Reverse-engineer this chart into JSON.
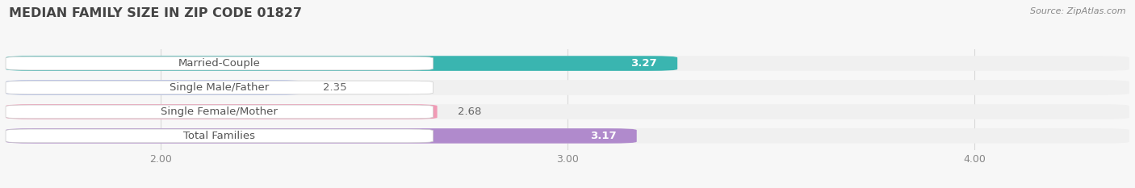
{
  "title": "MEDIAN FAMILY SIZE IN ZIP CODE 01827",
  "source": "Source: ZipAtlas.com",
  "categories": [
    "Married-Couple",
    "Single Male/Father",
    "Single Female/Mother",
    "Total Families"
  ],
  "values": [
    3.27,
    2.35,
    2.68,
    3.17
  ],
  "bar_colors": [
    "#3ab5b0",
    "#aab8e8",
    "#f09ab5",
    "#b08acc"
  ],
  "bar_bg_color": "#f0f0f0",
  "label_pill_color": "#ffffff",
  "xlim_min": 1.62,
  "xlim_max": 4.38,
  "xticks": [
    2.0,
    3.0,
    4.0
  ],
  "xtick_labels": [
    "2.00",
    "3.00",
    "4.00"
  ],
  "background_color": "#f7f7f7",
  "bar_height": 0.62,
  "label_fontsize": 9.5,
  "title_fontsize": 11.5,
  "value_fontsize": 9.5,
  "value_label_inside_color": "#ffffff",
  "value_label_outside_color": "#666666",
  "grid_color": "#d8d8d8",
  "source_color": "#888888",
  "title_color": "#444444",
  "label_text_color": "#555555"
}
